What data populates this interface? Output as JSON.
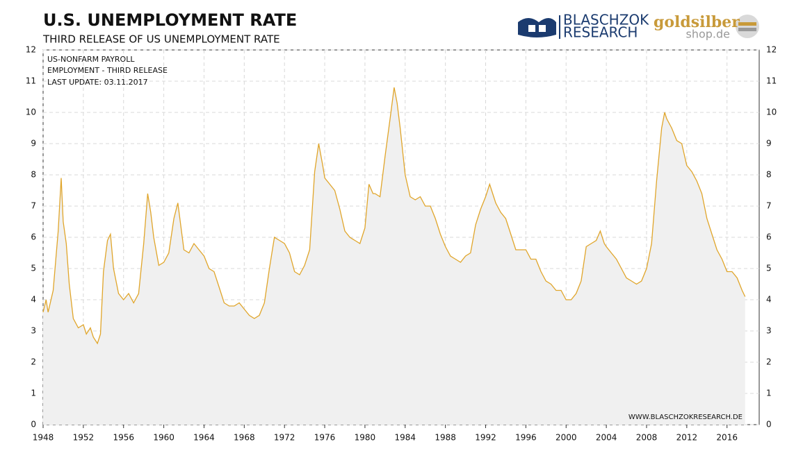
{
  "chart_data": {
    "type": "line",
    "title": "U.S. UNEMPLOYMENT RATE",
    "subtitle": "THIRD RELEASE OF US UNEMPLOYMENT RATE",
    "annotations": [
      "US-NONFARM PAYROLL",
      "EMPLOYMENT - THIRD RELEASE",
      "LAST UPDATE: 03.11.2017"
    ],
    "source": "WWW.BLASCHZOKRESEARCH.DE",
    "logo_text": [
      "BLASCHZOK",
      "RESEARCH",
      "goldsilber",
      "shop.de"
    ],
    "x": [
      1948,
      1948.3,
      1948.5,
      1949,
      1949.5,
      1949.8,
      1950,
      1950.3,
      1950.6,
      1951,
      1951.5,
      1952,
      1952.3,
      1952.7,
      1953,
      1953.4,
      1953.7,
      1954,
      1954.4,
      1954.7,
      1955,
      1955.5,
      1956,
      1956.5,
      1957,
      1957.5,
      1958,
      1958.4,
      1958.7,
      1959,
      1959.5,
      1960,
      1960.5,
      1961,
      1961.4,
      1961.8,
      1962,
      1962.5,
      1963,
      1963.5,
      1964,
      1964.5,
      1965,
      1965.5,
      1966,
      1966.5,
      1967,
      1967.5,
      1968,
      1968.5,
      1969,
      1969.5,
      1970,
      1970.5,
      1971,
      1971.5,
      1972,
      1972.5,
      1973,
      1973.5,
      1974,
      1974.5,
      1975,
      1975.4,
      1975.8,
      1976,
      1976.5,
      1977,
      1977.5,
      1978,
      1978.5,
      1979,
      1979.5,
      1980,
      1980.4,
      1980.8,
      1981,
      1981.5,
      1982,
      1982.5,
      1982.9,
      1983.2,
      1983.5,
      1984,
      1984.5,
      1985,
      1985.5,
      1986,
      1986.5,
      1987,
      1987.5,
      1988,
      1988.5,
      1989,
      1989.5,
      1990,
      1990.5,
      1991,
      1991.5,
      1992,
      1992.4,
      1992.8,
      1993,
      1993.5,
      1994,
      1994.5,
      1995,
      1995.5,
      1996,
      1996.5,
      1997,
      1997.5,
      1998,
      1998.5,
      1999,
      1999.5,
      2000,
      2000.5,
      2001,
      2001.5,
      2002,
      2002.5,
      2003,
      2003.4,
      2003.8,
      2004,
      2004.5,
      2005,
      2005.5,
      2006,
      2006.5,
      2007,
      2007.5,
      2008,
      2008.5,
      2009,
      2009.5,
      2009.8,
      2010,
      2010.5,
      2011,
      2011.5,
      2012,
      2012.5,
      2013,
      2013.5,
      2014,
      2014.5,
      2015,
      2015.5,
      2016,
      2016.5,
      2017,
      2017.5,
      2017.8
    ],
    "series": [
      {
        "name": "US unemployment rate",
        "color": "#e0a52a",
        "fill": "#f0f0f0",
        "values": [
          3.6,
          4.0,
          3.6,
          4.3,
          6.2,
          7.9,
          6.5,
          5.8,
          4.5,
          3.4,
          3.1,
          3.2,
          2.9,
          3.1,
          2.8,
          2.6,
          2.9,
          4.9,
          5.9,
          6.1,
          5.0,
          4.2,
          4.0,
          4.2,
          3.9,
          4.2,
          5.8,
          7.4,
          6.8,
          6.0,
          5.1,
          5.2,
          5.5,
          6.6,
          7.1,
          6.1,
          5.6,
          5.5,
          5.8,
          5.6,
          5.4,
          5.0,
          4.9,
          4.4,
          3.9,
          3.8,
          3.8,
          3.9,
          3.7,
          3.5,
          3.4,
          3.5,
          3.9,
          5.0,
          6.0,
          5.9,
          5.8,
          5.5,
          4.9,
          4.8,
          5.1,
          5.6,
          8.1,
          9.0,
          8.3,
          7.9,
          7.7,
          7.5,
          6.9,
          6.2,
          6.0,
          5.9,
          5.8,
          6.3,
          7.7,
          7.4,
          7.4,
          7.3,
          8.6,
          9.8,
          10.8,
          10.3,
          9.5,
          8.0,
          7.3,
          7.2,
          7.3,
          7.0,
          7.0,
          6.6,
          6.1,
          5.7,
          5.4,
          5.3,
          5.2,
          5.4,
          5.5,
          6.4,
          6.9,
          7.3,
          7.7,
          7.3,
          7.1,
          6.8,
          6.6,
          6.1,
          5.6,
          5.6,
          5.6,
          5.3,
          5.3,
          4.9,
          4.6,
          4.5,
          4.3,
          4.3,
          4.0,
          4.0,
          4.2,
          4.6,
          5.7,
          5.8,
          5.9,
          6.2,
          5.8,
          5.7,
          5.5,
          5.3,
          5.0,
          4.7,
          4.6,
          4.5,
          4.6,
          5.0,
          5.8,
          7.8,
          9.5,
          10.0,
          9.8,
          9.5,
          9.1,
          9.0,
          8.3,
          8.1,
          7.8,
          7.4,
          6.6,
          6.1,
          5.6,
          5.3,
          4.9,
          4.9,
          4.7,
          4.3,
          4.1
        ]
      }
    ],
    "xlim": [
      1948,
      2019.2
    ],
    "ylim": [
      0,
      12
    ],
    "xticks": [
      1948,
      1952,
      1956,
      1960,
      1964,
      1968,
      1972,
      1976,
      1980,
      1984,
      1988,
      1992,
      1996,
      2000,
      2004,
      2008,
      2012,
      2016
    ],
    "yticks": [
      0,
      1,
      2,
      3,
      4,
      5,
      6,
      7,
      8,
      9,
      10,
      11,
      12
    ],
    "grid": true
  }
}
